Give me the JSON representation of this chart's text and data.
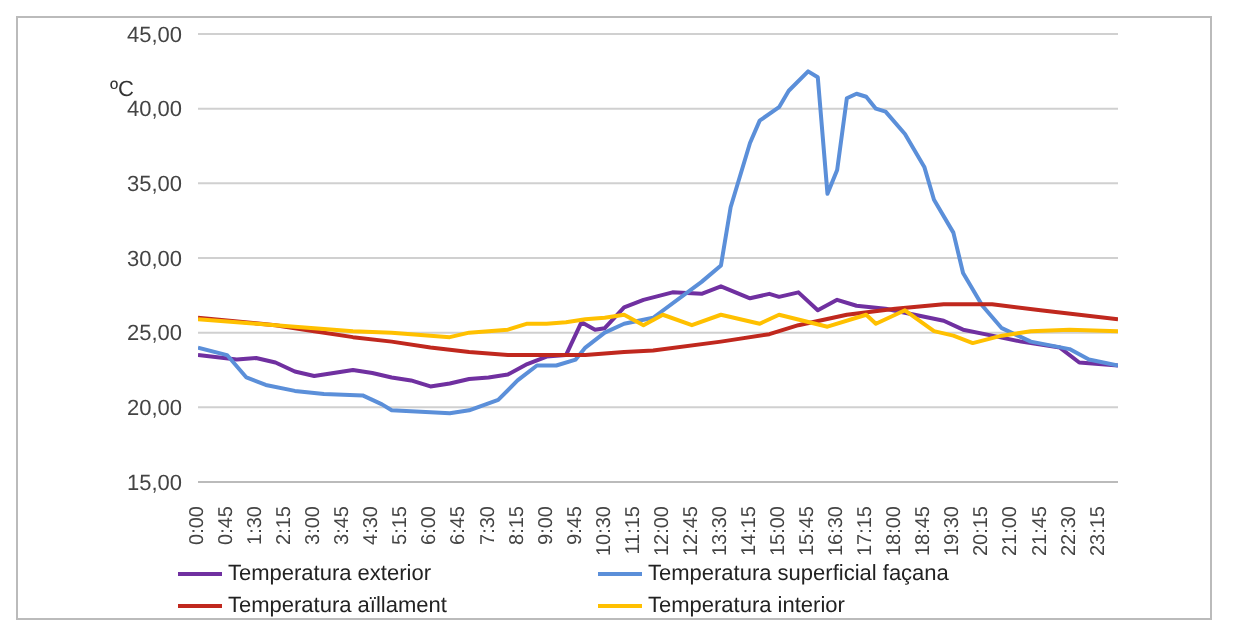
{
  "chart_data": {
    "type": "line",
    "ylabel": "ºC",
    "ylim": [
      15,
      45
    ],
    "yticks": [
      {
        "value": 15,
        "label": "15,00"
      },
      {
        "value": 20,
        "label": "20,00"
      },
      {
        "value": 25,
        "label": "25,00"
      },
      {
        "value": 30,
        "label": "30,00"
      },
      {
        "value": 35,
        "label": "35,00"
      },
      {
        "value": 40,
        "label": "40,00"
      },
      {
        "value": 45,
        "label": "45,00"
      }
    ],
    "xlim": [
      0,
      23.75
    ],
    "xticks": [
      {
        "value": 0,
        "label": "0:00"
      },
      {
        "value": 0.75,
        "label": "0:45"
      },
      {
        "value": 1.5,
        "label": "1:30"
      },
      {
        "value": 2.25,
        "label": "2:15"
      },
      {
        "value": 3,
        "label": "3:00"
      },
      {
        "value": 3.75,
        "label": "3:45"
      },
      {
        "value": 4.5,
        "label": "4:30"
      },
      {
        "value": 5.25,
        "label": "5:15"
      },
      {
        "value": 6,
        "label": "6:00"
      },
      {
        "value": 6.75,
        "label": "6:45"
      },
      {
        "value": 7.5,
        "label": "7:30"
      },
      {
        "value": 8.25,
        "label": "8:15"
      },
      {
        "value": 9,
        "label": "9:00"
      },
      {
        "value": 9.75,
        "label": "9:45"
      },
      {
        "value": 10.5,
        "label": "10:30"
      },
      {
        "value": 11.25,
        "label": "11:15"
      },
      {
        "value": 12,
        "label": "12:00"
      },
      {
        "value": 12.75,
        "label": "12:45"
      },
      {
        "value": 13.5,
        "label": "13:30"
      },
      {
        "value": 14.25,
        "label": "14:15"
      },
      {
        "value": 15,
        "label": "15:00"
      },
      {
        "value": 15.75,
        "label": "15:45"
      },
      {
        "value": 16.5,
        "label": "16:30"
      },
      {
        "value": 17.25,
        "label": "17:15"
      },
      {
        "value": 18,
        "label": "18:00"
      },
      {
        "value": 18.75,
        "label": "18:45"
      },
      {
        "value": 19.5,
        "label": "19:30"
      },
      {
        "value": 20.25,
        "label": "20:15"
      },
      {
        "value": 21,
        "label": "21:00"
      },
      {
        "value": 21.75,
        "label": "21:45"
      },
      {
        "value": 22.5,
        "label": "22:30"
      },
      {
        "value": 23.25,
        "label": "23:15"
      }
    ],
    "grid": "y",
    "legend": "bottom",
    "marker": "none",
    "line_style": "solid",
    "series": [
      {
        "name": "Temperatura exterior",
        "color": "#7030a0",
        "x": [
          0,
          1,
          1.5,
          2,
          2.5,
          3,
          3.5,
          4,
          4.5,
          5,
          5.5,
          6,
          6.5,
          7,
          7.5,
          8,
          8.5,
          9,
          9.5,
          9.9,
          10.25,
          10.5,
          11,
          11.5,
          12.25,
          13,
          13.5,
          14.25,
          14.75,
          15,
          15.5,
          16,
          16.5,
          17,
          17.75,
          18.5,
          19.25,
          19.75,
          20.5,
          21.25,
          22.25,
          22.75,
          23.75
        ],
        "values": [
          23.5,
          23.2,
          23.3,
          23.0,
          22.4,
          22.1,
          22.3,
          22.5,
          22.3,
          22.0,
          21.8,
          21.4,
          21.6,
          21.9,
          22.0,
          22.2,
          22.9,
          23.4,
          23.5,
          25.7,
          25.2,
          25.3,
          26.7,
          27.2,
          27.7,
          27.6,
          28.1,
          27.3,
          27.6,
          27.4,
          27.7,
          26.5,
          27.2,
          26.8,
          26.6,
          26.2,
          25.8,
          25.2,
          24.8,
          24.4,
          24.0,
          23.0,
          22.8
        ]
      },
      {
        "name": "Temperatura superficial façana",
        "color": "#5b8fd9",
        "x": [
          0,
          0.75,
          1.25,
          1.75,
          2.5,
          3.25,
          4.25,
          4.75,
          5,
          6.5,
          7,
          7.75,
          8.25,
          8.75,
          9.25,
          9.75,
          10,
          10.5,
          11,
          11.75,
          13,
          13.5,
          13.75,
          14.25,
          14.5,
          15,
          15.25,
          15.75,
          16,
          16.25,
          16.5,
          16.75,
          17,
          17.25,
          17.5,
          17.75,
          18.25,
          18.75,
          19,
          19.5,
          19.75,
          20.25,
          20.75,
          21.5,
          22.5,
          23,
          23.75
        ],
        "values": [
          24.0,
          23.5,
          22.0,
          21.5,
          21.1,
          20.9,
          20.8,
          20.2,
          19.8,
          19.6,
          19.8,
          20.5,
          21.8,
          22.8,
          22.8,
          23.2,
          24.0,
          25.0,
          25.6,
          26.0,
          28.4,
          29.5,
          33.4,
          37.7,
          39.2,
          40.1,
          41.2,
          42.5,
          42.1,
          34.3,
          35.9,
          40.7,
          41.0,
          40.8,
          40.0,
          39.8,
          38.3,
          36.1,
          33.9,
          31.7,
          29.0,
          26.8,
          25.3,
          24.4,
          23.9,
          23.2,
          22.8
        ]
      },
      {
        "name": "Temperatura aïllament",
        "color": "#c0281e",
        "x": [
          0,
          2,
          3,
          4,
          5,
          6,
          7,
          8,
          9,
          10,
          11,
          11.75,
          13.5,
          14.75,
          15.5,
          16.75,
          18,
          19.25,
          20.5,
          21.75,
          23.75
        ],
        "values": [
          26.0,
          25.5,
          25.1,
          24.7,
          24.4,
          24.0,
          23.7,
          23.5,
          23.5,
          23.5,
          23.7,
          23.8,
          24.4,
          24.9,
          25.5,
          26.2,
          26.6,
          26.9,
          26.9,
          26.5,
          25.9
        ]
      },
      {
        "name": "Temperatura interior",
        "color": "#ffc000",
        "x": [
          0,
          2,
          3,
          4,
          5,
          6,
          6.5,
          7,
          7.5,
          8,
          8.5,
          9,
          9.5,
          10,
          10.5,
          11,
          11.5,
          12,
          12.75,
          13.5,
          14.5,
          15,
          16.25,
          17.25,
          17.5,
          18.25,
          19,
          19.5,
          20,
          20.75,
          21.5,
          22.5,
          23.75
        ],
        "values": [
          25.9,
          25.5,
          25.3,
          25.1,
          25.0,
          24.8,
          24.7,
          25.0,
          25.1,
          25.2,
          25.6,
          25.6,
          25.7,
          25.9,
          26.0,
          26.2,
          25.5,
          26.2,
          25.5,
          26.2,
          25.6,
          26.2,
          25.4,
          26.2,
          25.6,
          26.5,
          25.1,
          24.8,
          24.3,
          24.8,
          25.1,
          25.2,
          25.1
        ]
      }
    ]
  }
}
